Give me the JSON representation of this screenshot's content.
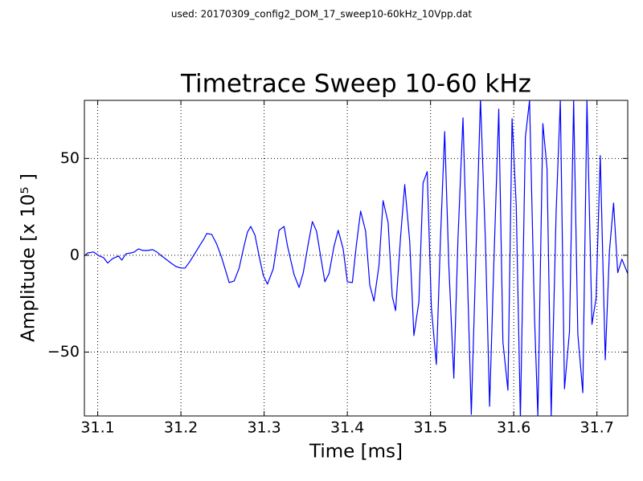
{
  "chart_data": {
    "type": "line",
    "suptitle": "used: 20170309_config2_DOM_17_sweep10-60kHz_10Vpp.dat",
    "title": "Timetrace Sweep 10-60 kHz",
    "xlabel": "Time [ms]",
    "ylabel": "Amplitude [x 10⁵ ]",
    "color": "#0000ff",
    "grid": true,
    "xlim": [
      31.084,
      31.737
    ],
    "ylim": [
      -83,
      80
    ],
    "xticks": [
      31.1,
      31.2,
      31.3,
      31.4,
      31.5,
      31.6,
      31.7
    ],
    "yticks": [
      {
        "value": -50,
        "label": "−50"
      },
      0,
      50
    ],
    "x": [
      31.084,
      31.088,
      31.095,
      31.102,
      31.107,
      31.112,
      31.118,
      31.125,
      31.129,
      31.134,
      31.14,
      31.144,
      31.149,
      31.154,
      31.16,
      31.166,
      31.171,
      31.177,
      31.182,
      31.188,
      31.194,
      31.2,
      31.205,
      31.21,
      31.216,
      31.222,
      31.228,
      31.231,
      31.237,
      31.243,
      31.249,
      31.254,
      31.258,
      31.264,
      31.27,
      31.276,
      31.28,
      31.284,
      31.289,
      31.295,
      31.299,
      31.304,
      31.311,
      31.318,
      31.324,
      31.328,
      31.336,
      31.342,
      31.347,
      31.353,
      31.358,
      31.363,
      31.369,
      31.373,
      31.378,
      31.384,
      31.389,
      31.395,
      31.4,
      31.406,
      31.411,
      31.416,
      31.422,
      31.427,
      31.432,
      31.438,
      31.443,
      31.449,
      31.454,
      31.458,
      31.464,
      31.469,
      31.475,
      31.48,
      31.486,
      31.491,
      31.496,
      31.501,
      31.507,
      31.512,
      31.517,
      31.522,
      31.528,
      31.533,
      31.539,
      31.544,
      31.549,
      31.555,
      31.56,
      31.566,
      31.571,
      31.576,
      31.582,
      31.587,
      31.593,
      31.598,
      31.603,
      31.608,
      31.614,
      31.619,
      31.625,
      31.629,
      31.635,
      31.64,
      31.645,
      31.651,
      31.656,
      31.661,
      31.667,
      31.672,
      31.677,
      31.683,
      31.688,
      31.694,
      31.699,
      31.704,
      31.71,
      31.715,
      31.72,
      31.725,
      31.73,
      31.737
    ],
    "values": [
      -0.4,
      1.2,
      1.7,
      -0.4,
      -1.2,
      -4,
      -1.7,
      -0.4,
      -2.5,
      0.8,
      1.2,
      1.7,
      3.3,
      2.5,
      2.5,
      2.9,
      1.7,
      -0.4,
      -2,
      -4,
      -5.8,
      -6.6,
      -6.6,
      -3.7,
      0.4,
      4.6,
      8.7,
      11.2,
      10.8,
      5.8,
      -1.2,
      -8.3,
      -14.1,
      -13.3,
      -6.6,
      5,
      12,
      14.9,
      10.4,
      -2.5,
      -10.4,
      -14.9,
      -7,
      12.9,
      14.9,
      5,
      -10,
      -16.6,
      -9.1,
      5.8,
      17.4,
      12.4,
      -3.3,
      -13.7,
      -9.5,
      4.6,
      12.9,
      3.3,
      -13.7,
      -14.1,
      5.8,
      22.8,
      12.4,
      -15.4,
      -23.7,
      -5.4,
      28.2,
      17,
      -21.2,
      -28.6,
      9.5,
      36.5,
      7,
      -41.5,
      -24.1,
      37.3,
      43.2,
      -27,
      -56.4,
      9.1,
      63.9,
      -5.4,
      -63.5,
      8.7,
      71,
      -5.4,
      -82.2,
      7,
      81,
      7,
      -78,
      -5.4,
      75.5,
      -44.8,
      -69.7,
      70.5,
      25.7,
      -84,
      61,
      80,
      -32.4,
      -83,
      68,
      45,
      -83,
      22.8,
      80,
      -69,
      -39.4,
      80,
      -40.7,
      -71,
      80,
      -35.7,
      -22,
      51.5,
      -54,
      2,
      27,
      -9,
      -2,
      -9.5
    ]
  }
}
